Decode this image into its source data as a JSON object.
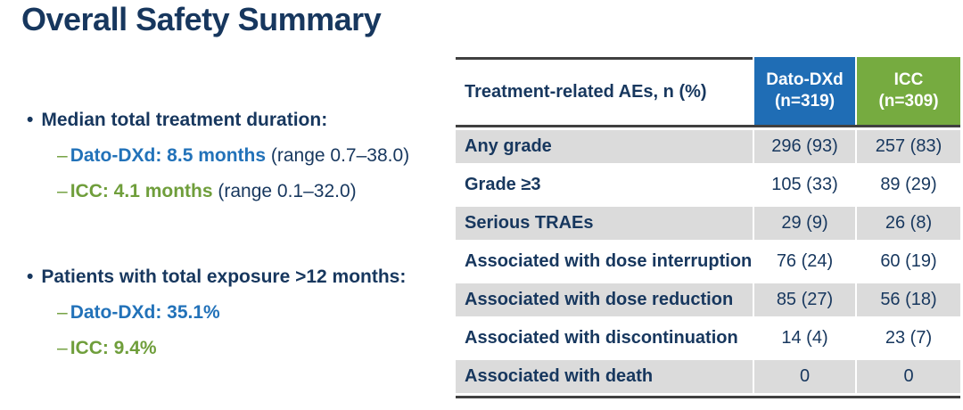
{
  "colors": {
    "navy": "#17375E",
    "blue": "#1F6DB5",
    "green": "#76AB40",
    "blue_text": "#2272B9",
    "green_text": "#6F9E3B",
    "row_gray": "#DBDBDB",
    "line": "#404040"
  },
  "title": "Overall Safety Summary",
  "bullets": [
    {
      "heading": "Median total treatment duration:",
      "items": [
        {
          "dash": "–",
          "value": "Dato-DXd: 8.5 months",
          "suffix": " (range 0.7–38.0)",
          "color": "blue"
        },
        {
          "dash": "–",
          "value": "ICC: 4.1 months",
          "suffix": " (range 0.1–32.0)",
          "color": "green"
        }
      ]
    },
    {
      "heading": "Patients with total exposure >12 months:",
      "items": [
        {
          "dash": "–",
          "value": "Dato-DXd: 35.1%",
          "suffix": "",
          "color": "blue"
        },
        {
          "dash": "–",
          "value": "ICC: 9.4%",
          "suffix": "",
          "color": "green"
        }
      ]
    }
  ],
  "table": {
    "header": {
      "col1": "Treatment-related AEs, n (%)",
      "col2": {
        "line1": "Dato-DXd",
        "line2": "(n=319)"
      },
      "col3": {
        "line1": "ICC",
        "line2": "(n=309)"
      }
    },
    "rows": [
      {
        "label": "Any grade",
        "dato": "296 (93)",
        "icc": "257 (83)"
      },
      {
        "label": "Grade ≥3",
        "dato": "105 (33)",
        "icc": "89 (29)"
      },
      {
        "label": "Serious TRAEs",
        "dato": "29 (9)",
        "icc": "26 (8)"
      },
      {
        "label": "Associated with dose interruption",
        "dato": "76 (24)",
        "icc": "60 (19)"
      },
      {
        "label": "Associated with dose reduction",
        "dato": "85 (27)",
        "icc": "56 (18)"
      },
      {
        "label": "Associated with discontinuation",
        "dato": "14 (4)",
        "icc": "23 (7)"
      },
      {
        "label": "Associated with death",
        "dato": "0",
        "icc": "0"
      }
    ]
  }
}
